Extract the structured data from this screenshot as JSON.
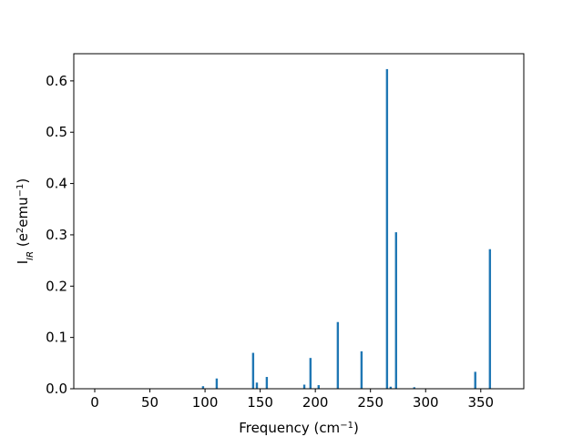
{
  "chart_data": {
    "type": "bar",
    "xlabel": [
      {
        "text": "Frequency (cm"
      },
      {
        "text": "−1",
        "style": "super"
      },
      {
        "text": ")"
      }
    ],
    "ylabel": [
      {
        "text": "I"
      },
      {
        "text": "IR",
        "style": "sub"
      },
      {
        "text": " (e"
      },
      {
        "text": "2",
        "style": "super"
      },
      {
        "text": "emu"
      },
      {
        "text": "−1",
        "style": "super"
      },
      {
        "text": ")"
      }
    ],
    "x": [
      98.2,
      110.6,
      143.6,
      147,
      156,
      190,
      195.6,
      203,
      220.4,
      241.9,
      265,
      268.3,
      273.2,
      289.7,
      345,
      358.3
    ],
    "values": [
      0.005,
      0.02,
      0.07,
      0.012,
      0.023,
      0.008,
      0.06,
      0.007,
      0.13,
      0.073,
      0.623,
      0.004,
      0.305,
      0.003,
      0.033,
      0.272
    ],
    "color": "#1f77b4",
    "xlim": [
      -19,
      389
    ],
    "ylim": [
      0,
      0.653
    ],
    "xticks": [
      0,
      50,
      100,
      150,
      200,
      250,
      300,
      350
    ],
    "yticks": [
      {
        "value": 0,
        "label": "0.0"
      },
      0.1,
      0.2,
      0.3,
      0.4,
      0.5,
      0.6
    ],
    "grid": false
  }
}
